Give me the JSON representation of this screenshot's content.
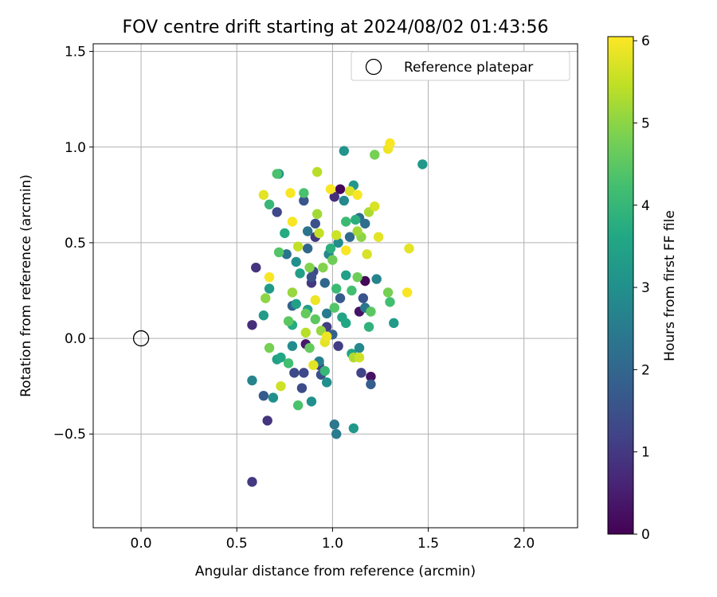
{
  "chart_data": {
    "type": "scatter",
    "title": "FOV centre drift starting at 2024/08/02 01:43:56",
    "xlabel": "Angular distance from reference (arcmin)",
    "ylabel": "Rotation from reference (arcmin)",
    "xlim": [
      -0.25,
      2.28
    ],
    "ylim": [
      -0.99,
      1.54
    ],
    "xticks": [
      0.0,
      0.5,
      1.0,
      1.5,
      2.0
    ],
    "xtick_labels": [
      "0.0",
      "0.5",
      "1.0",
      "1.5",
      "2.0"
    ],
    "yticks": [
      -0.5,
      0.0,
      0.5,
      1.0,
      1.5
    ],
    "ytick_labels": [
      "−0.5",
      "0.0",
      "0.5",
      "1.0",
      "1.5"
    ],
    "grid": true,
    "legend": {
      "position": "top-right",
      "entries": [
        "Reference platepar"
      ]
    },
    "reference_point": {
      "x": 0.0,
      "y": 0.0,
      "label": "Reference platepar"
    },
    "colorbar": {
      "label": "Hours from first FF file",
      "range": [
        0,
        6.05
      ],
      "ticks": [
        0,
        1,
        2,
        3,
        4,
        5,
        6
      ],
      "tick_labels": [
        "0",
        "1",
        "2",
        "3",
        "4",
        "5",
        "6"
      ],
      "colormap": "viridis"
    },
    "points": [
      {
        "x": 1.04,
        "y": 0.78,
        "t": 0.1
      },
      {
        "x": 1.17,
        "y": 0.3,
        "t": 0.1
      },
      {
        "x": 1.2,
        "y": -0.2,
        "t": 0.3
      },
      {
        "x": 1.14,
        "y": 0.14,
        "t": 0.3
      },
      {
        "x": 0.86,
        "y": -0.03,
        "t": 0.4
      },
      {
        "x": 1.01,
        "y": 0.74,
        "t": 0.8
      },
      {
        "x": 0.58,
        "y": 0.07,
        "t": 0.8
      },
      {
        "x": 0.6,
        "y": 0.37,
        "t": 0.9
      },
      {
        "x": 0.66,
        "y": -0.43,
        "t": 0.9
      },
      {
        "x": 0.58,
        "y": -0.75,
        "t": 1.0
      },
      {
        "x": 0.89,
        "y": 0.29,
        "t": 1.0
      },
      {
        "x": 0.91,
        "y": 0.53,
        "t": 1.0
      },
      {
        "x": 1.03,
        "y": -0.04,
        "t": 1.1
      },
      {
        "x": 0.93,
        "y": -0.14,
        "t": 1.1
      },
      {
        "x": 0.97,
        "y": 0.06,
        "t": 1.1
      },
      {
        "x": 1.15,
        "y": -0.18,
        "t": 1.2
      },
      {
        "x": 0.71,
        "y": 0.66,
        "t": 1.3
      },
      {
        "x": 0.9,
        "y": 0.35,
        "t": 1.3
      },
      {
        "x": 0.85,
        "y": -0.18,
        "t": 1.3
      },
      {
        "x": 0.8,
        "y": -0.18,
        "t": 1.4
      },
      {
        "x": 0.84,
        "y": -0.26,
        "t": 1.4
      },
      {
        "x": 0.94,
        "y": -0.19,
        "t": 1.5
      },
      {
        "x": 0.89,
        "y": 0.32,
        "t": 1.5
      },
      {
        "x": 0.91,
        "y": 0.6,
        "t": 1.5
      },
      {
        "x": 1.16,
        "y": 0.21,
        "t": 1.6
      },
      {
        "x": 0.85,
        "y": 0.72,
        "t": 1.6
      },
      {
        "x": 1.04,
        "y": 0.21,
        "t": 1.7
      },
      {
        "x": 0.64,
        "y": -0.3,
        "t": 1.7
      },
      {
        "x": 1.2,
        "y": -0.24,
        "t": 1.8
      },
      {
        "x": 0.79,
        "y": 0.17,
        "t": 1.9
      },
      {
        "x": 1.0,
        "y": 0.02,
        "t": 1.9
      },
      {
        "x": 0.96,
        "y": 0.29,
        "t": 2.0
      },
      {
        "x": 0.87,
        "y": 0.47,
        "t": 2.0
      },
      {
        "x": 1.09,
        "y": 0.53,
        "t": 2.1
      },
      {
        "x": 1.14,
        "y": 0.63,
        "t": 2.1
      },
      {
        "x": 1.17,
        "y": 0.6,
        "t": 2.2
      },
      {
        "x": 0.76,
        "y": 0.44,
        "t": 2.3
      },
      {
        "x": 0.87,
        "y": 0.56,
        "t": 2.3
      },
      {
        "x": 1.17,
        "y": 0.16,
        "t": 2.4
      },
      {
        "x": 1.01,
        "y": -0.45,
        "t": 2.4
      },
      {
        "x": 1.02,
        "y": -0.5,
        "t": 2.5
      },
      {
        "x": 0.97,
        "y": 0.13,
        "t": 2.5
      },
      {
        "x": 0.93,
        "y": -0.12,
        "t": 2.6
      },
      {
        "x": 0.58,
        "y": -0.22,
        "t": 2.7
      },
      {
        "x": 1.23,
        "y": 0.31,
        "t": 2.7
      },
      {
        "x": 1.06,
        "y": 0.72,
        "t": 2.8
      },
      {
        "x": 0.98,
        "y": 0.44,
        "t": 2.8
      },
      {
        "x": 1.14,
        "y": -0.05,
        "t": 2.8
      },
      {
        "x": 1.03,
        "y": 0.5,
        "t": 2.9
      },
      {
        "x": 0.79,
        "y": -0.04,
        "t": 2.9
      },
      {
        "x": 0.81,
        "y": 0.4,
        "t": 3.0
      },
      {
        "x": 0.69,
        "y": -0.31,
        "t": 3.0
      },
      {
        "x": 0.89,
        "y": -0.33,
        "t": 3.0
      },
      {
        "x": 0.97,
        "y": -0.23,
        "t": 3.0
      },
      {
        "x": 0.72,
        "y": 0.86,
        "t": 3.1
      },
      {
        "x": 1.06,
        "y": 0.98,
        "t": 3.1
      },
      {
        "x": 1.47,
        "y": 0.91,
        "t": 3.2
      },
      {
        "x": 1.11,
        "y": 0.8,
        "t": 3.2
      },
      {
        "x": 1.11,
        "y": -0.47,
        "t": 3.2
      },
      {
        "x": 1.32,
        "y": 0.08,
        "t": 3.3
      },
      {
        "x": 0.64,
        "y": 0.12,
        "t": 3.3
      },
      {
        "x": 0.67,
        "y": 0.26,
        "t": 3.3
      },
      {
        "x": 0.71,
        "y": -0.11,
        "t": 3.4
      },
      {
        "x": 0.81,
        "y": 0.18,
        "t": 3.4
      },
      {
        "x": 0.83,
        "y": 0.34,
        "t": 3.4
      },
      {
        "x": 0.87,
        "y": 0.15,
        "t": 3.4
      },
      {
        "x": 1.07,
        "y": 0.33,
        "t": 3.4
      },
      {
        "x": 1.1,
        "y": -0.08,
        "t": 3.5
      },
      {
        "x": 1.05,
        "y": 0.11,
        "t": 3.5
      },
      {
        "x": 1.07,
        "y": 0.08,
        "t": 3.6
      },
      {
        "x": 0.73,
        "y": -0.1,
        "t": 3.6
      },
      {
        "x": 0.79,
        "y": 0.07,
        "t": 3.7
      },
      {
        "x": 0.75,
        "y": 0.55,
        "t": 3.7
      },
      {
        "x": 1.12,
        "y": 0.62,
        "t": 3.8
      },
      {
        "x": 0.99,
        "y": 0.47,
        "t": 3.8
      },
      {
        "x": 1.19,
        "y": 0.06,
        "t": 3.9
      },
      {
        "x": 0.96,
        "y": -0.17,
        "t": 4.0
      },
      {
        "x": 0.67,
        "y": 0.7,
        "t": 4.0
      },
      {
        "x": 1.02,
        "y": 0.26,
        "t": 4.1
      },
      {
        "x": 1.07,
        "y": 0.61,
        "t": 4.1
      },
      {
        "x": 1.1,
        "y": 0.25,
        "t": 4.2
      },
      {
        "x": 1.3,
        "y": 0.19,
        "t": 4.2
      },
      {
        "x": 0.77,
        "y": -0.13,
        "t": 4.2
      },
      {
        "x": 0.82,
        "y": -0.35,
        "t": 4.3
      },
      {
        "x": 0.71,
        "y": 0.86,
        "t": 4.3
      },
      {
        "x": 0.85,
        "y": 0.76,
        "t": 4.3
      },
      {
        "x": 1.01,
        "y": 0.16,
        "t": 4.4
      },
      {
        "x": 0.72,
        "y": 0.45,
        "t": 4.4
      },
      {
        "x": 0.77,
        "y": 0.09,
        "t": 4.5
      },
      {
        "x": 0.91,
        "y": 0.1,
        "t": 4.5
      },
      {
        "x": 1.2,
        "y": 0.14,
        "t": 4.5
      },
      {
        "x": 0.88,
        "y": -0.05,
        "t": 4.6
      },
      {
        "x": 0.86,
        "y": 0.13,
        "t": 4.6
      },
      {
        "x": 1.0,
        "y": 0.41,
        "t": 4.7
      },
      {
        "x": 1.13,
        "y": 0.32,
        "t": 4.7
      },
      {
        "x": 1.22,
        "y": 0.96,
        "t": 4.8
      },
      {
        "x": 1.29,
        "y": 0.24,
        "t": 4.8
      },
      {
        "x": 0.67,
        "y": -0.05,
        "t": 4.8
      },
      {
        "x": 0.95,
        "y": 0.37,
        "t": 4.9
      },
      {
        "x": 0.88,
        "y": 0.37,
        "t": 4.9
      },
      {
        "x": 1.15,
        "y": 0.53,
        "t": 5.0
      },
      {
        "x": 0.65,
        "y": 0.21,
        "t": 5.0
      },
      {
        "x": 0.79,
        "y": 0.24,
        "t": 5.1
      },
      {
        "x": 0.94,
        "y": 0.04,
        "t": 5.1
      },
      {
        "x": 0.92,
        "y": 0.65,
        "t": 5.2
      },
      {
        "x": 1.13,
        "y": 0.56,
        "t": 5.2
      },
      {
        "x": 1.19,
        "y": 0.66,
        "t": 5.3
      },
      {
        "x": 1.11,
        "y": -0.1,
        "t": 5.3
      },
      {
        "x": 0.92,
        "y": 0.87,
        "t": 5.4
      },
      {
        "x": 0.86,
        "y": 0.03,
        "t": 5.4
      },
      {
        "x": 0.82,
        "y": 0.48,
        "t": 5.5
      },
      {
        "x": 0.93,
        "y": 0.55,
        "t": 5.5
      },
      {
        "x": 1.14,
        "y": -0.1,
        "t": 5.6
      },
      {
        "x": 0.73,
        "y": -0.25,
        "t": 5.6
      },
      {
        "x": 1.02,
        "y": 0.54,
        "t": 5.6
      },
      {
        "x": 1.09,
        "y": 0.77,
        "t": 5.7
      },
      {
        "x": 1.22,
        "y": 0.69,
        "t": 5.7
      },
      {
        "x": 1.18,
        "y": 0.44,
        "t": 5.7
      },
      {
        "x": 0.64,
        "y": 0.75,
        "t": 5.8
      },
      {
        "x": 1.4,
        "y": 0.47,
        "t": 5.8
      },
      {
        "x": 1.24,
        "y": 0.53,
        "t": 5.8
      },
      {
        "x": 0.96,
        "y": -0.02,
        "t": 5.8
      },
      {
        "x": 0.9,
        "y": -0.14,
        "t": 5.8
      },
      {
        "x": 0.91,
        "y": 0.2,
        "t": 5.9
      },
      {
        "x": 0.97,
        "y": 0.01,
        "t": 5.9
      },
      {
        "x": 1.29,
        "y": 0.99,
        "t": 5.9
      },
      {
        "x": 1.39,
        "y": 0.24,
        "t": 6.0
      },
      {
        "x": 1.3,
        "y": 1.02,
        "t": 6.0
      },
      {
        "x": 0.78,
        "y": 0.76,
        "t": 6.0
      },
      {
        "x": 0.67,
        "y": 0.32,
        "t": 6.0
      },
      {
        "x": 1.07,
        "y": 0.46,
        "t": 6.0
      },
      {
        "x": 0.99,
        "y": 0.78,
        "t": 6.0
      },
      {
        "x": 1.13,
        "y": 0.75,
        "t": 6.0
      },
      {
        "x": 0.79,
        "y": 0.61,
        "t": 6.0
      }
    ]
  }
}
